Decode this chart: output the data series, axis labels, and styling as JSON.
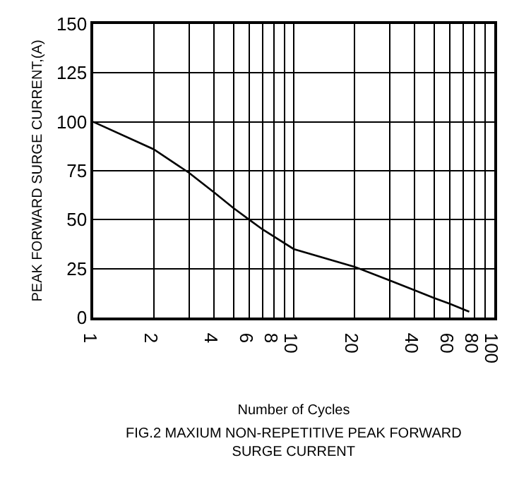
{
  "chart_data": {
    "type": "line",
    "xlabel": "Number of Cycles",
    "ylabel": "PEAK FORWARD SURGE CURRENT,(A)",
    "annotations": [
      "FIG.2 MAXIUM NON-REPETITIVE PEAK FORWARD\nSURGE CURRENT"
    ],
    "log": "x",
    "grid": true,
    "marker": "none",
    "line_style": "solid",
    "xlim": [
      1,
      100
    ],
    "xticks": [
      1,
      2,
      {
        "value": 3,
        "label": null
      },
      4,
      {
        "value": 5,
        "label": null
      },
      6,
      {
        "value": 7,
        "label": null
      },
      8,
      {
        "value": 9,
        "label": null
      },
      10,
      20,
      {
        "value": 30,
        "label": null
      },
      40,
      {
        "value": 50,
        "label": null
      },
      60,
      {
        "value": 70,
        "label": null
      },
      80,
      {
        "value": 90,
        "label": null
      },
      100
    ],
    "ylim": [
      0,
      150
    ],
    "yticks": [
      0,
      25,
      50,
      75,
      100,
      125,
      150
    ],
    "x": [
      1,
      2,
      3,
      4,
      5,
      6,
      7,
      10,
      20,
      30,
      40,
      50,
      60,
      75
    ],
    "series": [
      {
        "color": "#000000",
        "values": [
          100,
          86,
          74,
          64,
          56,
          50,
          45,
          35,
          26,
          19,
          14,
          10,
          7,
          3
        ]
      }
    ]
  }
}
